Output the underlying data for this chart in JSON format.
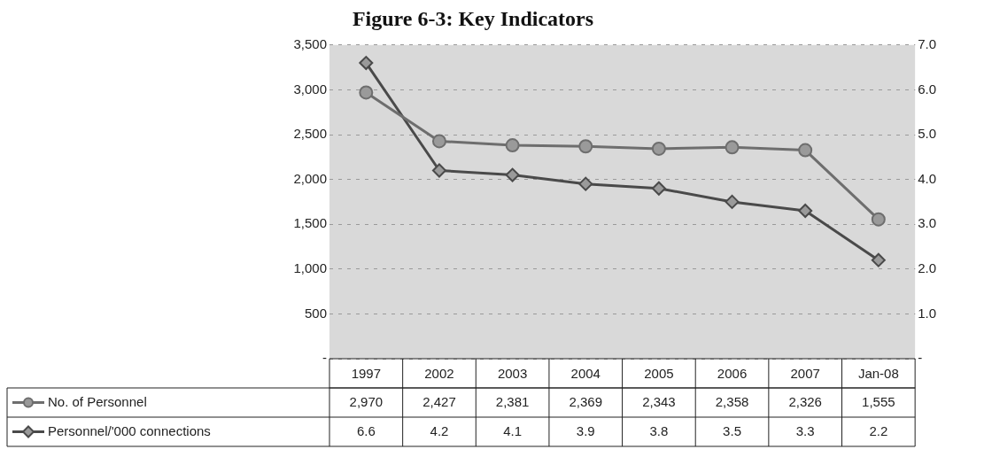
{
  "chart_data": {
    "type": "line",
    "title": "Figure 6-3: Key Indicators",
    "categories": [
      "1997",
      "2002",
      "2003",
      "2004",
      "2005",
      "2006",
      "2007",
      "Jan-08"
    ],
    "series": [
      {
        "name": "No. of Personnel",
        "color": "#6e6e6e",
        "marker": "circle",
        "values": [
          2970,
          2427,
          2381,
          2369,
          2343,
          2358,
          2326,
          1555
        ],
        "value_labels": [
          "2,970",
          "2,427",
          "2,381",
          "2,369",
          "2,343",
          "2,358",
          "2,326",
          "1,555"
        ]
      },
      {
        "name": "Personnel/'000 connections",
        "color": "#4a4a4a",
        "marker": "diamond",
        "axis": "y2",
        "values": [
          6.6,
          4.2,
          4.1,
          3.9,
          3.8,
          3.5,
          3.3,
          2.2
        ],
        "value_labels": [
          "6.6",
          "4.2",
          "4.1",
          "3.9",
          "3.8",
          "3.5",
          "3.3",
          "2.2"
        ]
      }
    ],
    "ylim": [
      0,
      3500
    ],
    "yticks": [
      {
        "value": 0,
        "label": "-"
      },
      {
        "value": 500,
        "label": "500"
      },
      {
        "value": 1000,
        "label": "1,000"
      },
      {
        "value": 1500,
        "label": "1,500"
      },
      {
        "value": 2000,
        "label": "2,000"
      },
      {
        "value": 2500,
        "label": "2,500"
      },
      {
        "value": 3000,
        "label": "3,000"
      },
      {
        "value": 3500,
        "label": "3,500"
      }
    ],
    "y2lim": [
      0,
      7
    ],
    "y2ticks": [
      {
        "value": 0,
        "label": "-"
      },
      {
        "value": 1,
        "label": "1.0"
      },
      {
        "value": 2,
        "label": "2.0"
      },
      {
        "value": 3,
        "label": "3.0"
      },
      {
        "value": 4,
        "label": "4.0"
      },
      {
        "value": 5,
        "label": "5.0"
      },
      {
        "value": 6,
        "label": "6.0"
      },
      {
        "value": 7,
        "label": "7.0"
      }
    ],
    "grid": "y",
    "legend": "bottom left",
    "line_style": "solid"
  }
}
